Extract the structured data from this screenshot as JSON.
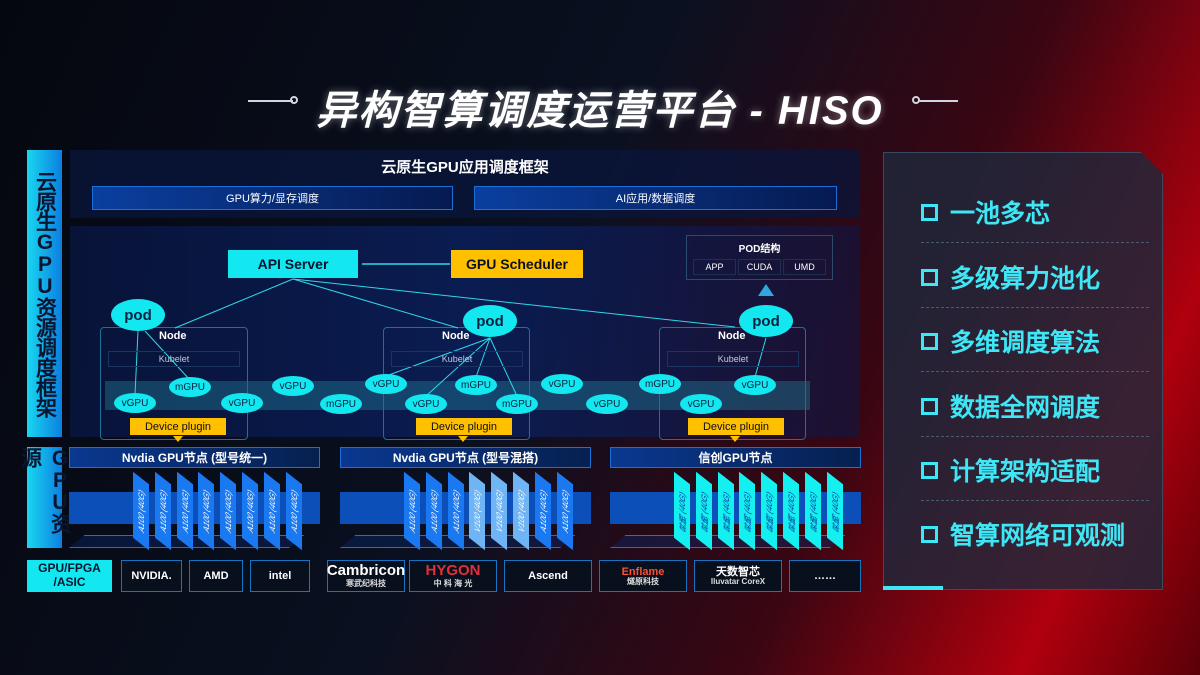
{
  "title": "异构智算调度运营平台 - HISO",
  "left_labels": {
    "top": "云原生GPU资源调度框架",
    "bottom": "GPU资源"
  },
  "framework": {
    "title": "云原生GPU应用调度框架",
    "boxes": [
      "GPU算力/显存调度",
      "AI应用/数据调度"
    ]
  },
  "diagram": {
    "api_server": "API Server",
    "gpu_scheduler": "GPU Scheduler",
    "pod_struct": {
      "title": "POD结构",
      "items": [
        "APP",
        "CUDA",
        "UMD"
      ]
    },
    "pod_label": "pod",
    "node_label": "Node",
    "kubelet_label": "Kubelet",
    "device_plugin_label": "Device plugin",
    "gpus": [
      "vGPU",
      "mGPU",
      "vGPU",
      "vGPU",
      "mGPU",
      "vGPU",
      "vGPU",
      "mGPU",
      "mGPU",
      "vGPU",
      "vGPU",
      "mGPU",
      "vGPU",
      "vGPU"
    ]
  },
  "gpu_nodes": [
    {
      "title": "Nvdia GPU节点 (型号统一)",
      "cards": [
        "A100 (40G)",
        "A100 (40G)",
        "A100 (40G)",
        "A100 (40G)",
        "A100 (40G)",
        "A100 (40G)",
        "A100 (40G)",
        "A100 (40G)"
      ]
    },
    {
      "title": "Nvdia GPU节点 (型号混搭)",
      "cards": [
        "A100 (40G)",
        "A100 (40G)",
        "A100 (40G)",
        "V100 (40G)",
        "V100 (40G)",
        "V100 (40G)",
        "A100 (40G)",
        "A100 (40G)"
      ]
    },
    {
      "title": "信创GPU节点",
      "cards": [
        "昇腾 (40G)",
        "昇腾 (40G)",
        "昇腾 (40G)",
        "昇腾 (40G)",
        "昇腾 (40G)",
        "昇腾 (40G)",
        "昇腾 (40G)",
        "昇腾 (40G)"
      ]
    }
  ],
  "vendors": {
    "label": "GPU/FPGA /ASIC",
    "logos": [
      [
        "NVIDIA."
      ],
      [
        "AMD"
      ],
      [
        "intel"
      ],
      [
        "Cambricon",
        "寒武纪科技"
      ],
      [
        "HYGON",
        "中 科 海 光"
      ],
      [
        "Ascend"
      ],
      [
        "Enflame",
        "燧原科技"
      ],
      [
        "天数智芯",
        "Iluvatar CoreX"
      ],
      [
        "……"
      ]
    ]
  },
  "features": [
    "一池多芯",
    "多级算力池化",
    "多维调度算法",
    "数据全网调度",
    "计算架构适配",
    "智算网络可观测"
  ],
  "colors": {
    "cyan": "#13e8f0",
    "yellow": "#ffc000",
    "blue": "#1a78f0",
    "light_blue": "#6fb4f5",
    "ascend_cyan": "#14f0f0"
  }
}
